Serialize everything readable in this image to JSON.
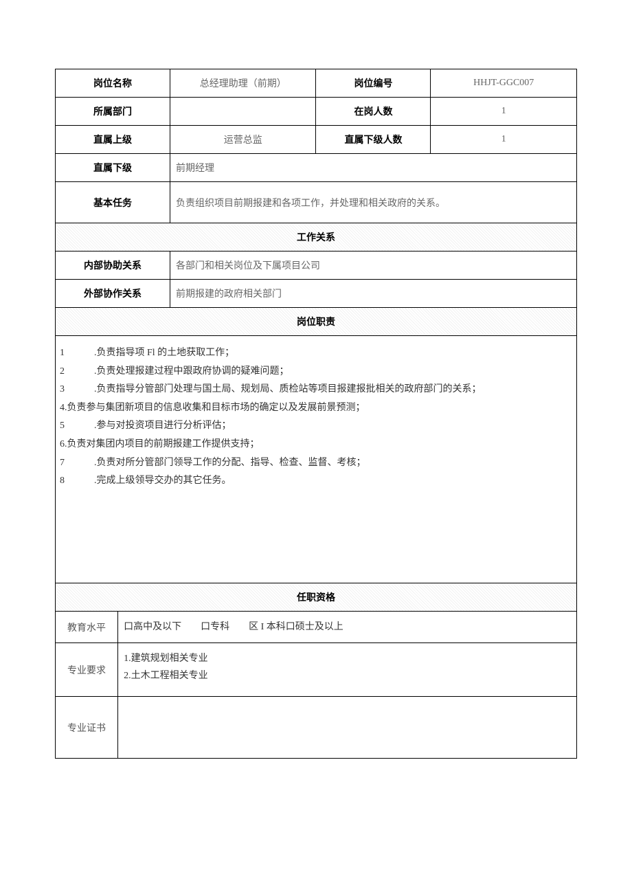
{
  "header": {
    "position_name_label": "岗位名称",
    "position_name_value": "总经理助理（前期）",
    "position_code_label": "岗位编号",
    "position_code_value": "HHJT-GGC007",
    "dept_label": "所属部门",
    "dept_value": "",
    "headcount_label": "在岗人数",
    "headcount_value": "1",
    "superior_label": "直属上级",
    "superior_value": "运营总监",
    "sub_count_label": "直属下级人数",
    "sub_count_value": "1",
    "subordinate_label": "直属下级",
    "subordinate_value": "前期经理",
    "basic_task_label": "基本任务",
    "basic_task_value": "负责组织项目前期报建和各项工作，并处理和相关政府的关系。"
  },
  "relations": {
    "section_title": "工作关系",
    "internal_label": "内部协助关系",
    "internal_value": "各部门和相关岗位及下属项目公司",
    "external_label": "外部协作关系",
    "external_value": "前期报建的政府相关部门"
  },
  "duties": {
    "section_title": "岗位职责",
    "lines": [
      {
        "n": "1",
        "indent": true,
        "text": ".负责指导项 Fl 的土地获取工作；"
      },
      {
        "n": "2",
        "indent": true,
        "text": ".负责处理报建过程中跟政府协调的疑难问题；"
      },
      {
        "n": "3",
        "indent": true,
        "text": ".负责指导分管部门处理与国土局、规划局、质检站等项目报建报批相关的政府部门的关系；"
      },
      {
        "n": "4.",
        "indent": false,
        "text": "负责参与集团新项目的信息收集和目标市场的确定以及发展前景预测；"
      },
      {
        "n": "5",
        "indent": true,
        "text": ".参与对投资项目进行分析评估；"
      },
      {
        "n": "6.",
        "indent": false,
        "text": "负责对集团内项目的前期报建工作提供支持；"
      },
      {
        "n": "7",
        "indent": true,
        "text": ".负责对所分管部门领导工作的分配、指导、检查、监督、考核；"
      },
      {
        "n": "8",
        "indent": true,
        "text": ".完成上级领导交办的其它任务。"
      }
    ]
  },
  "qualifications": {
    "section_title": "任职资格",
    "education_label": "教育水平",
    "education_value": "口高中及以下  口专科  区 I 本科口硕士及以上",
    "major_label": "专业要求",
    "major_value_1": "1.建筑规划相关专业",
    "major_value_2": "2.土木工程相关专业",
    "cert_label": "专业证书",
    "cert_value": ""
  },
  "style": {
    "border_color": "#000000",
    "text_color": "#333333",
    "muted_color": "#666666",
    "bg_color": "#ffffff"
  }
}
